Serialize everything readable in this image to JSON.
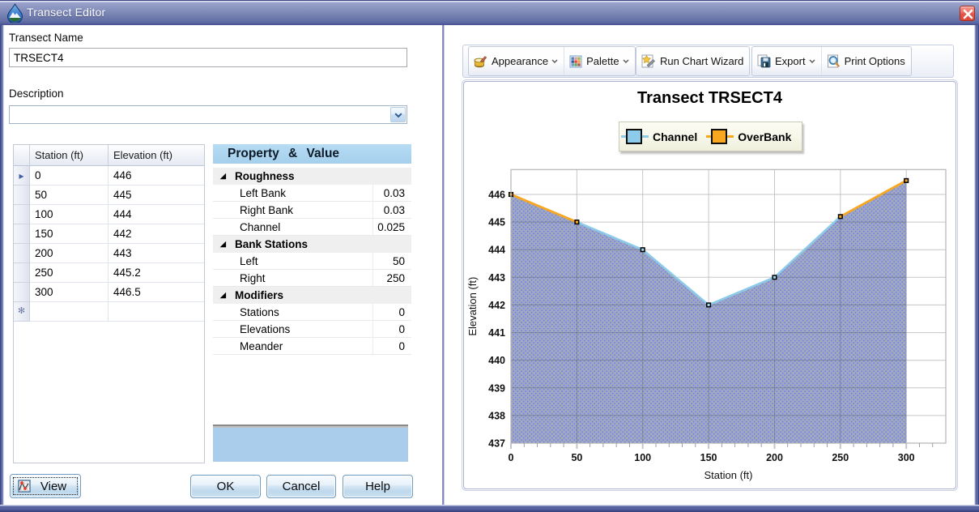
{
  "window": {
    "title": "Transect Editor"
  },
  "form": {
    "transect_name_label": "Transect Name",
    "transect_name_value": "TRSECT4",
    "description_label": "Description",
    "description_value": ""
  },
  "table": {
    "columns": [
      "Station (ft)",
      "Elevation (ft)"
    ],
    "rows": [
      {
        "station": "0",
        "elevation": "446"
      },
      {
        "station": "50",
        "elevation": "445"
      },
      {
        "station": "100",
        "elevation": "444"
      },
      {
        "station": "150",
        "elevation": "442"
      },
      {
        "station": "200",
        "elevation": "443"
      },
      {
        "station": "250",
        "elevation": "445.2"
      },
      {
        "station": "300",
        "elevation": "446.5"
      }
    ],
    "current_row_index": 0,
    "current_row_marker": "▸",
    "new_row_marker": "✻"
  },
  "property_grid": {
    "header": "Property & Value",
    "expander_glyph": "◢",
    "groups": [
      {
        "name": "Roughness",
        "items": [
          {
            "label": "Left Bank",
            "value": "0.03"
          },
          {
            "label": "Right Bank",
            "value": "0.03"
          },
          {
            "label": "Channel",
            "value": "0.025"
          }
        ]
      },
      {
        "name": "Bank Stations",
        "items": [
          {
            "label": "Left",
            "value": "50"
          },
          {
            "label": "Right",
            "value": "250"
          }
        ]
      },
      {
        "name": "Modifiers",
        "items": [
          {
            "label": "Stations",
            "value": "0"
          },
          {
            "label": "Elevations",
            "value": "0"
          },
          {
            "label": "Meander",
            "value": "0"
          }
        ]
      }
    ]
  },
  "buttons": {
    "view": "View",
    "ok": "OK",
    "cancel": "Cancel",
    "help": "Help"
  },
  "toolbar": {
    "appearance": "Appearance",
    "palette": "Palette",
    "run_chart_wizard": "Run Chart Wizard",
    "export": "Export",
    "print_options": "Print Options"
  },
  "chart_data": {
    "type": "area",
    "title": "Transect TRSECT4",
    "xlabel": "Station (ft)",
    "ylabel": "Elevation (ft)",
    "points": [
      [
        0,
        446
      ],
      [
        50,
        445
      ],
      [
        100,
        444
      ],
      [
        150,
        442
      ],
      [
        200,
        443
      ],
      [
        250,
        445.2
      ],
      [
        300,
        446.5
      ]
    ],
    "bank_stations": {
      "left": 50,
      "right": 250
    },
    "series": [
      {
        "name": "Channel",
        "color": "#8ccbe9"
      },
      {
        "name": "OverBank",
        "color": "#f8a71f"
      }
    ],
    "xlim": [
      0,
      330
    ],
    "ylim": [
      437,
      446.9
    ],
    "xticks_major": [
      0,
      50,
      100,
      150,
      200,
      250,
      300
    ],
    "xtick_minor_step": 10,
    "yticks": [
      437,
      438,
      439,
      440,
      441,
      442,
      443,
      444,
      445,
      446
    ],
    "legend_position": "top",
    "grid": true,
    "fill_base_color": "#9aa5bc",
    "fill_dot_color": "#6d73f0"
  }
}
